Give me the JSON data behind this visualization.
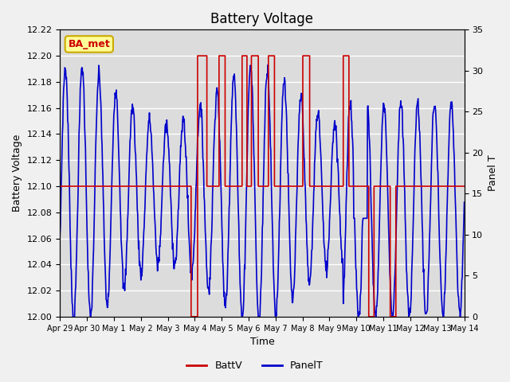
{
  "title": "Battery Voltage",
  "xlabel": "Time",
  "ylabel_left": "Battery Voltage",
  "ylabel_right": "Panel T",
  "annotation": "BA_met",
  "ylim_left": [
    12.0,
    12.22
  ],
  "ylim_right": [
    0,
    35
  ],
  "yticks_left": [
    12.0,
    12.02,
    12.04,
    12.06,
    12.08,
    12.1,
    12.12,
    12.14,
    12.16,
    12.18,
    12.2,
    12.22
  ],
  "yticks_right": [
    0,
    5,
    10,
    15,
    20,
    25,
    30,
    35
  ],
  "xtick_labels": [
    "Apr 29",
    "Apr 30",
    "May 1",
    "May 2",
    "May 3",
    "May 4",
    "May 5",
    "May 6",
    "May 7",
    "May 8",
    "May 9",
    "May 10",
    "May 11",
    "May 12",
    "May 13",
    "May 14"
  ],
  "bg_color": "#dcdcdc",
  "fig_bg_color": "#f0f0f0",
  "line_color_battv": "#cc0000",
  "line_color_panelt": "#0000cc",
  "legend_battv": "BattV",
  "legend_panelt": "PanelT",
  "title_fontsize": 12,
  "annotation_facecolor": "#ffff99",
  "annotation_edgecolor": "#ccaa00",
  "annotation_textcolor": "#cc0000"
}
